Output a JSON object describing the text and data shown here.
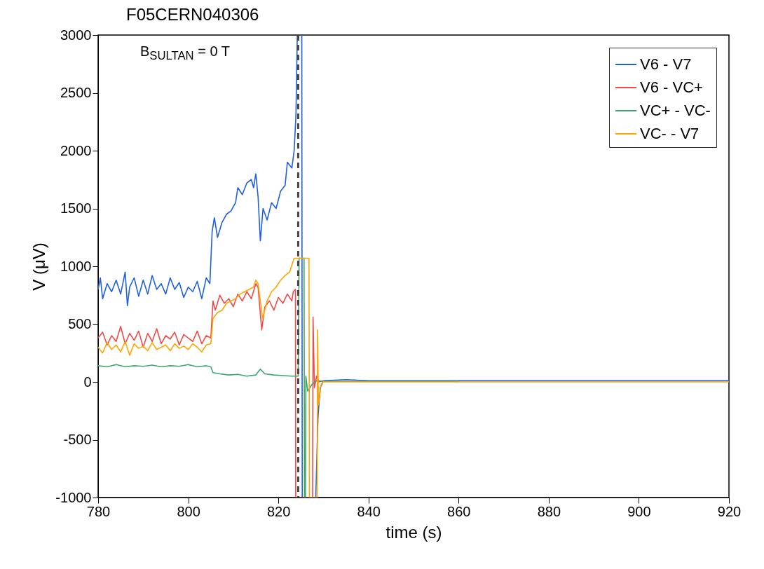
{
  "chart_data": {
    "type": "line",
    "title": "F05CERN040306",
    "xlabel": "time (s)",
    "ylabel": "V (μV)",
    "annotations": [
      "B$_{SULTAN}$ = 0 T"
    ],
    "xlim": [
      780,
      920
    ],
    "xticks": [
      780,
      800,
      820,
      840,
      860,
      880,
      900,
      920
    ],
    "ylim": [
      -1000,
      3000
    ],
    "yticks": [
      {
        "value": -1000,
        "label": "-1000"
      },
      -500,
      0,
      500,
      {
        "value": 1000,
        "label": "1000"
      },
      {
        "value": 1500,
        "label": "1500"
      },
      {
        "value": 2000,
        "label": "2000"
      },
      {
        "value": 2500,
        "label": "2500"
      },
      {
        "value": 3000,
        "label": "3000"
      }
    ],
    "grid": false,
    "legend": "top right",
    "line_style": "solid",
    "marker": "none",
    "ref_lines": [
      {
        "axis": "x",
        "value": 824.4,
        "color": "#444444",
        "line_style": "dashed"
      }
    ],
    "series": [
      {
        "name": "V6 - V7",
        "color": "#1f5fe0",
        "x": [
          780,
          780.5,
          781,
          782,
          783,
          784,
          785,
          786,
          786.5,
          787,
          788,
          789,
          790,
          791,
          792,
          793,
          794,
          795,
          796,
          797,
          798,
          799,
          800,
          801,
          802,
          803,
          804,
          804.8,
          805.3,
          805.8,
          806.5,
          807.5,
          808.5,
          809.5,
          810.5,
          811,
          812,
          813,
          814,
          814.5,
          815,
          815.5,
          816,
          816.6,
          817.5,
          818.5,
          819.5,
          820.5,
          821.5,
          822,
          823,
          823.5,
          823.9,
          824.2,
          825.2,
          825.3,
          828.3,
          828.8,
          829.3,
          830,
          835,
          840,
          860,
          880,
          900,
          920
        ],
        "values": [
          800,
          900,
          720,
          850,
          780,
          880,
          760,
          950,
          660,
          820,
          900,
          740,
          880,
          760,
          920,
          800,
          850,
          760,
          900,
          800,
          860,
          730,
          820,
          780,
          870,
          720,
          900,
          850,
          1300,
          1420,
          1250,
          1380,
          1450,
          1480,
          1550,
          1680,
          1620,
          1720,
          1750,
          1680,
          1800,
          1600,
          1220,
          1500,
          1400,
          1550,
          1500,
          1650,
          1700,
          1900,
          1850,
          2000,
          2300,
          3000,
          3000,
          -1000,
          -1000,
          -300,
          -50,
          10,
          20,
          10,
          10,
          10,
          10,
          10
        ]
      },
      {
        "name": "V6 - VC+",
        "color": "#f04a4a",
        "x": [
          780,
          781,
          782,
          783,
          784,
          785,
          786,
          787,
          788,
          789,
          790,
          791,
          792,
          793,
          794,
          795,
          796,
          797,
          798,
          799,
          800,
          801,
          802,
          803,
          804,
          805,
          805.5,
          806,
          807,
          808,
          809,
          810,
          811,
          812,
          813,
          814,
          815,
          815.5,
          816.3,
          817,
          818,
          819,
          820,
          821,
          822,
          823,
          823.3,
          823.8,
          823.85,
          827.6,
          827.7,
          828,
          828.5,
          829,
          830
        ],
        "values": [
          380,
          430,
          320,
          400,
          350,
          480,
          330,
          420,
          360,
          440,
          300,
          420,
          350,
          460,
          330,
          400,
          370,
          430,
          320,
          410,
          380,
          350,
          440,
          330,
          400,
          380,
          700,
          620,
          750,
          680,
          720,
          650,
          760,
          700,
          780,
          720,
          850,
          820,
          450,
          650,
          700,
          620,
          730,
          680,
          760,
          700,
          780,
          800,
          -1000,
          -1000,
          560,
          -50,
          50,
          0,
          10
        ]
      },
      {
        "name": "VC+ - VC-",
        "color": "#3aa76d",
        "x": [
          780,
          782,
          784,
          786,
          788,
          790,
          792,
          794,
          796,
          798,
          800,
          802,
          804,
          805,
          805.5,
          807,
          809,
          811,
          813,
          815,
          816,
          817,
          819,
          821,
          823,
          824.4,
          824.6,
          825.7,
          825.8,
          826,
          826.1,
          826.5,
          827.5,
          828.5,
          830,
          840,
          860
        ],
        "values": [
          140,
          130,
          150,
          130,
          140,
          135,
          145,
          130,
          140,
          135,
          150,
          130,
          140,
          130,
          80,
          70,
          60,
          65,
          50,
          60,
          110,
          70,
          60,
          55,
          50,
          50,
          1070,
          1070,
          -1000,
          -1000,
          50,
          -80,
          -20,
          10,
          5,
          5,
          5
        ]
      },
      {
        "name": "VC- - V7",
        "color": "#ffa500",
        "x": [
          780,
          781,
          782,
          783,
          784,
          785,
          786,
          787,
          788,
          789,
          790,
          791,
          792,
          793,
          794,
          795,
          796,
          797,
          798,
          799,
          800,
          801,
          802,
          803,
          804,
          805,
          805.5,
          806.5,
          807.5,
          808.5,
          809.5,
          810.5,
          811.5,
          812.5,
          813.5,
          814.5,
          815,
          815.5,
          816.5,
          817.5,
          818.5,
          819.5,
          820.5,
          821.5,
          822.5,
          823.5,
          826.8,
          826.9,
          828.6,
          828.7,
          828.9,
          829.5,
          830,
          840,
          860,
          880,
          900,
          920
        ],
        "values": [
          300,
          250,
          340,
          280,
          320,
          260,
          350,
          230,
          330,
          290,
          310,
          270,
          340,
          280,
          300,
          320,
          270,
          330,
          290,
          310,
          280,
          330,
          300,
          260,
          320,
          330,
          550,
          600,
          620,
          680,
          700,
          720,
          760,
          780,
          800,
          820,
          880,
          850,
          550,
          700,
          780,
          820,
          880,
          920,
          950,
          1070,
          1070,
          -1000,
          -1000,
          450,
          -200,
          -20,
          0,
          0,
          0,
          0,
          0,
          0
        ]
      }
    ]
  }
}
